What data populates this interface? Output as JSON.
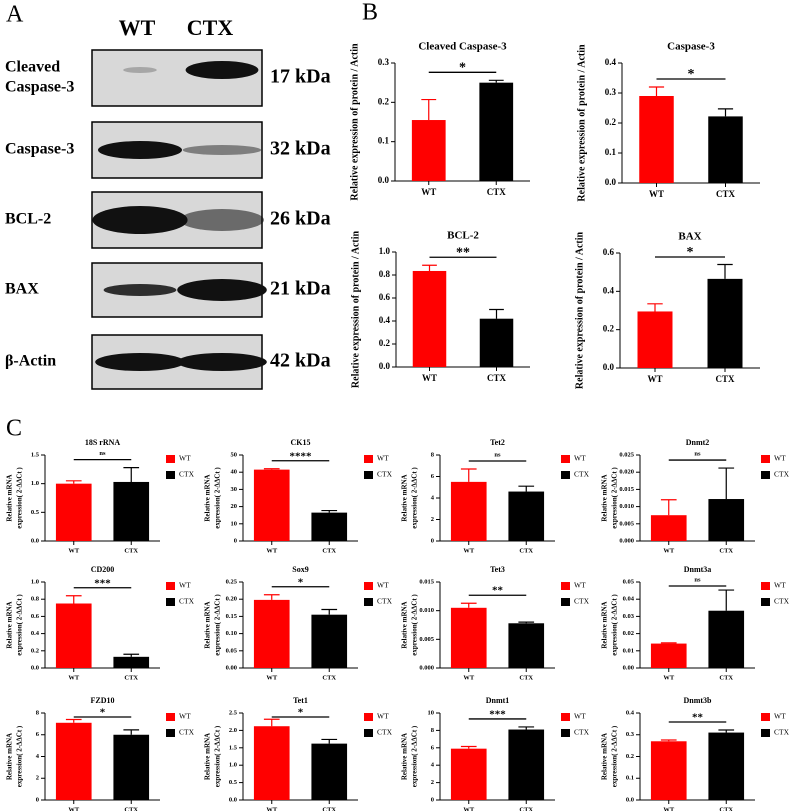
{
  "panels": [
    "A",
    "B",
    "C"
  ],
  "blot": {
    "lanes": [
      "WT",
      "CTX"
    ],
    "rows": [
      {
        "label": [
          "Cleaved",
          "Caspase-3"
        ],
        "size": "17 kDa"
      },
      {
        "label": [
          "Caspase-3"
        ],
        "size": "32 kDa"
      },
      {
        "label": [
          "BCL-2"
        ],
        "size": "26 kDa"
      },
      {
        "label": [
          "BAX"
        ],
        "size": "21 kDa"
      },
      {
        "label": [
          "β-Actin"
        ],
        "size": "42 kDa"
      }
    ]
  },
  "chart_data": [
    {
      "type": "bar",
      "title": "Cleaved Caspase-3",
      "ylabel": "Relative expression of protein / Actin",
      "categories": [
        "WT",
        "CTX"
      ],
      "colors": [
        "#ff0000",
        "#000000"
      ],
      "values": [
        0.155,
        0.25
      ],
      "errors": [
        0.052,
        0.006
      ],
      "ylim": [
        0,
        0.3
      ],
      "yticks": [
        {
          "value": 0,
          "label": "0.0"
        },
        0.1,
        0.2,
        0.3
      ],
      "significance": "*"
    },
    {
      "type": "bar",
      "title": "Caspase-3",
      "ylabel": "Relative expression of protein / Actin",
      "categories": [
        "WT",
        "CTX"
      ],
      "colors": [
        "#ff0000",
        "#000000"
      ],
      "values": [
        0.29,
        0.222
      ],
      "errors": [
        0.03,
        0.025
      ],
      "ylim": [
        0,
        0.4
      ],
      "yticks": [
        {
          "value": 0,
          "label": "0.0"
        },
        0.1,
        0.2,
        0.3,
        0.4
      ],
      "significance": "*"
    },
    {
      "type": "bar",
      "title": "BCL-2",
      "ylabel": "Relative expression of protein / Actin",
      "categories": [
        "WT",
        "CTX"
      ],
      "colors": [
        "#ff0000",
        "#000000"
      ],
      "values": [
        0.835,
        0.42
      ],
      "errors": [
        0.05,
        0.08
      ],
      "ylim": [
        0,
        1
      ],
      "yticks": [
        {
          "value": 0,
          "label": "0.0"
        },
        0.2,
        0.4,
        0.6,
        0.8,
        {
          "value": 1,
          "label": "1.0"
        }
      ],
      "significance": "**"
    },
    {
      "type": "bar",
      "title": "BAX",
      "ylabel": "Relative expression of protein / Actin",
      "categories": [
        "WT",
        "CTX"
      ],
      "colors": [
        "#ff0000",
        "#000000"
      ],
      "values": [
        0.295,
        0.465
      ],
      "errors": [
        0.04,
        0.075
      ],
      "ylim": [
        0,
        0.6
      ],
      "yticks": [
        {
          "value": 0,
          "label": "0.0"
        },
        0.2,
        0.4,
        0.6
      ],
      "significance": "*"
    },
    {
      "type": "bar",
      "title": "18S rRNA",
      "ylabel": [
        "Relative mRNA",
        "expression( 2-ΔΔCt )"
      ],
      "legend": true,
      "categories": [
        "WT",
        "CTX"
      ],
      "colors": [
        "#ff0000",
        "#000000"
      ],
      "values": [
        1.0,
        1.03
      ],
      "errors": [
        0.05,
        0.25
      ],
      "ylim": [
        0,
        1.5
      ],
      "yticks": [
        {
          "value": 0,
          "label": "0.0"
        },
        0.5,
        {
          "value": 1,
          "label": "1.0"
        },
        1.5
      ],
      "significance": "ns"
    },
    {
      "type": "bar",
      "title": "CK15",
      "ylabel": [
        "Relative mRNA",
        "expression( 2-ΔΔCt )"
      ],
      "legend": true,
      "categories": [
        "WT",
        "CTX"
      ],
      "colors": [
        "#ff0000",
        "#000000"
      ],
      "values": [
        41.5,
        16.5
      ],
      "errors": [
        0.5,
        1.2
      ],
      "ylim": [
        0,
        50
      ],
      "yticks": [
        0,
        10,
        20,
        30,
        40,
        50
      ],
      "significance": "****"
    },
    {
      "type": "bar",
      "title": "Tet2",
      "ylabel": [
        "Relative mRNA",
        "expression( 2-ΔΔCt )"
      ],
      "legend": true,
      "categories": [
        "WT",
        "CTX"
      ],
      "colors": [
        "#ff0000",
        "#000000"
      ],
      "values": [
        5.5,
        4.6
      ],
      "errors": [
        1.2,
        0.5
      ],
      "ylim": [
        0,
        8
      ],
      "yticks": [
        0,
        2,
        4,
        6,
        8
      ],
      "significance": "ns"
    },
    {
      "type": "bar",
      "title": "Dnmt2",
      "ylabel": [
        "Relative mRNA",
        "expression( 2-ΔΔCt )"
      ],
      "legend": true,
      "categories": [
        "WT",
        "CTX"
      ],
      "colors": [
        "#ff0000",
        "#000000"
      ],
      "values": [
        0.0075,
        0.0122
      ],
      "errors": [
        0.0045,
        0.009
      ],
      "ylim": [
        0,
        0.025
      ],
      "yticks": [
        {
          "value": 0,
          "label": "0.000"
        },
        0.005,
        {
          "value": 0.01,
          "label": "0.010"
        },
        0.015,
        {
          "value": 0.02,
          "label": "0.020"
        },
        0.025
      ],
      "significance": "ns"
    },
    {
      "type": "bar",
      "title": "CD200",
      "ylabel": [
        "Relative mRNA",
        "expression( 2-ΔΔCt )"
      ],
      "legend": true,
      "categories": [
        "WT",
        "CTX"
      ],
      "colors": [
        "#ff0000",
        "#000000"
      ],
      "values": [
        0.75,
        0.13
      ],
      "errors": [
        0.09,
        0.03
      ],
      "ylim": [
        0,
        1
      ],
      "yticks": [
        {
          "value": 0,
          "label": "0.0"
        },
        0.2,
        0.4,
        0.6,
        0.8,
        {
          "value": 1,
          "label": "1.0"
        }
      ],
      "significance": "***"
    },
    {
      "type": "bar",
      "title": "Sox9",
      "ylabel": [
        "Relative mRNA",
        "expression( 2-ΔΔCt )"
      ],
      "legend": true,
      "categories": [
        "WT",
        "CTX"
      ],
      "colors": [
        "#ff0000",
        "#000000"
      ],
      "values": [
        0.198,
        0.155
      ],
      "errors": [
        0.015,
        0.015
      ],
      "ylim": [
        0,
        0.25
      ],
      "yticks": [
        {
          "value": 0,
          "label": "0.00"
        },
        0.05,
        {
          "value": 0.1,
          "label": "0.10"
        },
        0.15,
        {
          "value": 0.2,
          "label": "0.20"
        },
        0.25
      ],
      "significance": "*"
    },
    {
      "type": "bar",
      "title": "Tet3",
      "ylabel": [
        "Relative mRNA",
        "expression( 2-ΔΔCt )"
      ],
      "legend": true,
      "categories": [
        "WT",
        "CTX"
      ],
      "colors": [
        "#ff0000",
        "#000000"
      ],
      "values": [
        0.0105,
        0.0078
      ],
      "errors": [
        0.0008,
        0.0002
      ],
      "ylim": [
        0,
        0.015
      ],
      "yticks": [
        {
          "value": 0,
          "label": "0.000"
        },
        0.005,
        {
          "value": 0.01,
          "label": "0.010"
        },
        0.015
      ],
      "significance": "**"
    },
    {
      "type": "bar",
      "title": "Dnmt3a",
      "ylabel": [
        "Relative mRNA",
        "expression( 2-ΔΔCt )"
      ],
      "legend": true,
      "categories": [
        "WT",
        "CTX"
      ],
      "colors": [
        "#ff0000",
        "#000000"
      ],
      "values": [
        0.0142,
        0.0333
      ],
      "errors": [
        0.0004,
        0.012
      ],
      "ylim": [
        0,
        0.05
      ],
      "yticks": [
        {
          "value": 0,
          "label": "0.00"
        },
        0.01,
        0.02,
        0.03,
        0.04,
        0.05
      ],
      "significance": "ns"
    },
    {
      "type": "bar",
      "title": "FZD10",
      "ylabel": [
        "Relative mRNA",
        "expression( 2-ΔΔCt )"
      ],
      "legend": true,
      "categories": [
        "WT",
        "CTX"
      ],
      "colors": [
        "#ff0000",
        "#000000"
      ],
      "values": [
        7.1,
        6.0
      ],
      "errors": [
        0.3,
        0.45
      ],
      "ylim": [
        0,
        8
      ],
      "yticks": [
        0,
        2,
        4,
        6,
        8
      ],
      "significance": "*"
    },
    {
      "type": "bar",
      "title": "Tet1",
      "ylabel": [
        "Relative mRNA",
        "expression( 2-ΔΔCt )"
      ],
      "legend": true,
      "categories": [
        "WT",
        "CTX"
      ],
      "colors": [
        "#ff0000",
        "#000000"
      ],
      "values": [
        2.12,
        1.62
      ],
      "errors": [
        0.2,
        0.12
      ],
      "ylim": [
        0,
        2.5
      ],
      "yticks": [
        {
          "value": 0,
          "label": "0.0"
        },
        0.5,
        {
          "value": 1,
          "label": "1.0"
        },
        1.5,
        {
          "value": 2,
          "label": "2.0"
        },
        2.5
      ],
      "significance": "*"
    },
    {
      "type": "bar",
      "title": "Dnmt1",
      "ylabel": [
        "Relative mRNA",
        "expression( 2-ΔΔCt )"
      ],
      "legend": true,
      "categories": [
        "WT",
        "CTX"
      ],
      "colors": [
        "#ff0000",
        "#000000"
      ],
      "values": [
        5.9,
        8.1
      ],
      "errors": [
        0.25,
        0.3
      ],
      "ylim": [
        0,
        10
      ],
      "yticks": [
        0,
        2,
        4,
        6,
        8,
        10
      ],
      "significance": "***"
    },
    {
      "type": "bar",
      "title": "Dnmt3b",
      "ylabel": [
        "Relative mRNA",
        "expression( 2-ΔΔCt )"
      ],
      "legend": true,
      "categories": [
        "WT",
        "CTX"
      ],
      "colors": [
        "#ff0000",
        "#000000"
      ],
      "values": [
        0.27,
        0.31
      ],
      "errors": [
        0.006,
        0.012
      ],
      "ylim": [
        0,
        0.4
      ],
      "yticks": [
        {
          "value": 0,
          "label": "0.0"
        },
        0.1,
        0.2,
        0.3,
        0.4
      ],
      "significance": "**"
    }
  ]
}
